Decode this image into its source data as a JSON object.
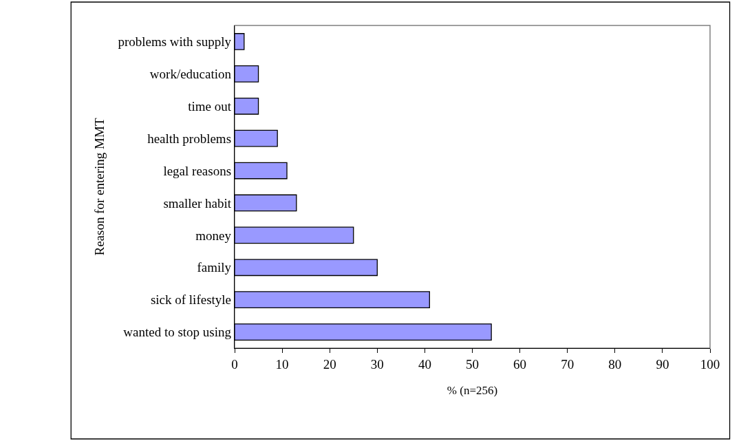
{
  "chart_data": {
    "type": "bar",
    "orientation": "horizontal",
    "categories": [
      "problems with supply",
      "work/education",
      "time out",
      "health problems",
      "legal reasons",
      "smaller habit",
      "money",
      "family",
      "sick of lifestyle",
      "wanted to stop using"
    ],
    "values": [
      2,
      5,
      5,
      9,
      11,
      13,
      25,
      30,
      41,
      54
    ],
    "color": "#9999ff",
    "xlabel": "% (n=256)",
    "ylabel": "Reason for entering MMT",
    "xlim": [
      0,
      100
    ],
    "xticks": [
      0,
      10,
      20,
      30,
      40,
      50,
      60,
      70,
      80,
      90,
      100
    ],
    "grid": false,
    "legend": false
  }
}
